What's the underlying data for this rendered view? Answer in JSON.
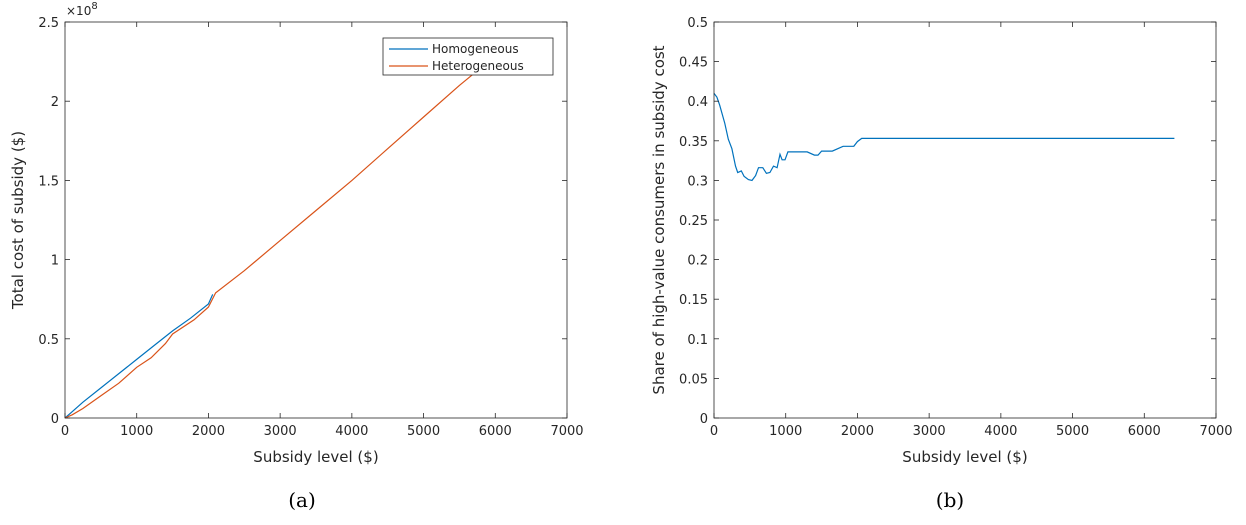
{
  "chart_data": [
    {
      "type": "line",
      "caption": "(a)",
      "xlabel": "Subsidy level ($)",
      "ylabel": "Total cost of subsidy ($)",
      "xlim": [
        0,
        7000
      ],
      "ylim": [
        0,
        2.5
      ],
      "y_scale_label": "×10",
      "y_scale_exponent": "8",
      "xticks": [
        0,
        1000,
        2000,
        3000,
        4000,
        5000,
        6000,
        7000
      ],
      "xtick_labels": [
        "0",
        "1000",
        "2000",
        "3000",
        "4000",
        "5000",
        "6000",
        "7000"
      ],
      "yticks": [
        0,
        0.5,
        1,
        1.5,
        2,
        2.5
      ],
      "ytick_labels": [
        "0",
        "0.5",
        "1",
        "1.5",
        "2",
        "2.5"
      ],
      "grid": false,
      "legend_position": "top-right",
      "series": [
        {
          "name": "Homogeneous",
          "color": "#0072BD",
          "x": [
            0,
            100,
            250,
            500,
            750,
            1000,
            1250,
            1500,
            1750,
            2000,
            2060
          ],
          "y": [
            0.0,
            0.04,
            0.1,
            0.19,
            0.28,
            0.37,
            0.46,
            0.55,
            0.63,
            0.72,
            0.78
          ]
        },
        {
          "name": "Heterogeneous",
          "color": "#D95319",
          "x": [
            0,
            100,
            250,
            500,
            750,
            1000,
            1200,
            1400,
            1500,
            1800,
            2000,
            2100,
            2500,
            3000,
            3500,
            4000,
            4500,
            5000,
            5500,
            5850
          ],
          "y": [
            0.0,
            0.02,
            0.06,
            0.14,
            0.22,
            0.32,
            0.38,
            0.47,
            0.53,
            0.62,
            0.7,
            0.79,
            0.93,
            1.12,
            1.31,
            1.5,
            1.7,
            1.9,
            2.1,
            2.23
          ]
        }
      ]
    },
    {
      "type": "line",
      "caption": "(b)",
      "xlabel": "Subsidy level ($)",
      "ylabel": "Share of high-value consumers in subsidy cost",
      "xlim": [
        0,
        7000
      ],
      "ylim": [
        0,
        0.5
      ],
      "xticks": [
        0,
        1000,
        2000,
        3000,
        4000,
        5000,
        6000,
        7000
      ],
      "xtick_labels": [
        "0",
        "1000",
        "2000",
        "3000",
        "4000",
        "5000",
        "6000",
        "7000"
      ],
      "yticks": [
        0,
        0.05,
        0.1,
        0.15,
        0.2,
        0.25,
        0.3,
        0.35,
        0.4,
        0.45,
        0.5
      ],
      "ytick_labels": [
        "0",
        "0.05",
        "0.1",
        "0.15",
        "0.2",
        "0.25",
        "0.3",
        "0.35",
        "0.4",
        "0.45",
        "0.5"
      ],
      "grid": false,
      "series": [
        {
          "color": "#0072BD",
          "x": [
            0,
            40,
            80,
            150,
            200,
            250,
            300,
            330,
            380,
            420,
            480,
            530,
            580,
            620,
            680,
            730,
            780,
            830,
            880,
            920,
            950,
            990,
            1030,
            1080,
            1150,
            1300,
            1400,
            1450,
            1500,
            1550,
            1650,
            1800,
            1850,
            1950,
            2000,
            2060,
            2100,
            3000,
            4000,
            5000,
            6000,
            6420
          ],
          "y": [
            0.41,
            0.405,
            0.395,
            0.372,
            0.352,
            0.34,
            0.318,
            0.31,
            0.312,
            0.305,
            0.301,
            0.3,
            0.306,
            0.316,
            0.316,
            0.309,
            0.31,
            0.318,
            0.316,
            0.333,
            0.326,
            0.326,
            0.336,
            0.336,
            0.336,
            0.336,
            0.332,
            0.332,
            0.337,
            0.337,
            0.337,
            0.343,
            0.343,
            0.343,
            0.349,
            0.353,
            0.353,
            0.353,
            0.353,
            0.353,
            0.353,
            0.353
          ]
        }
      ]
    }
  ]
}
